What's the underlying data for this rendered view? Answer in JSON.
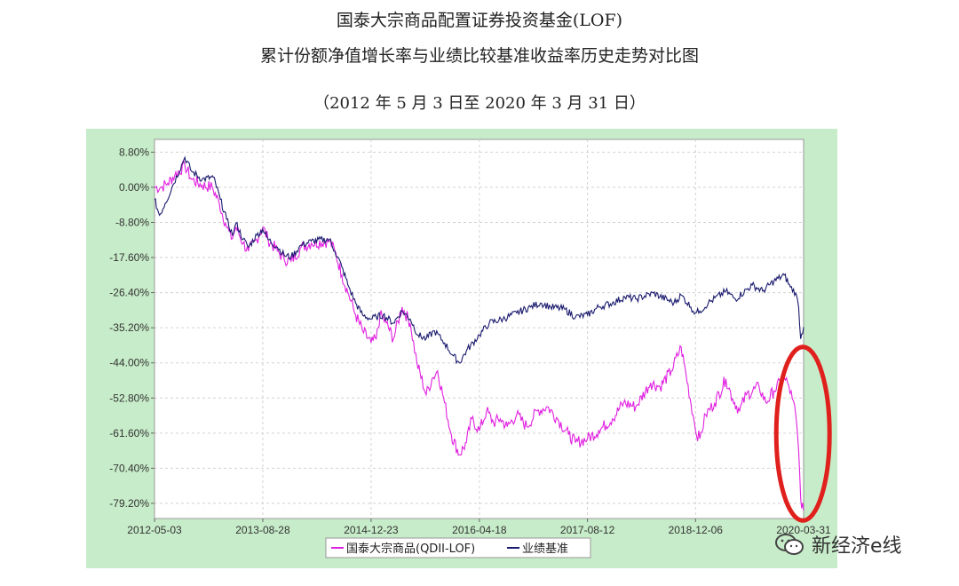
{
  "header": {
    "title_line1": "国泰大宗商品配置证券投资基金(LOF)",
    "title_line2": "累计份额净值增长率与业绩比较基准收益率历史走势对比图",
    "period": "（2012 年 5 月 3 日至 2020 年 3 月 31 日）"
  },
  "watermark": {
    "text": "新经济e线",
    "icon": "wechat-icon"
  },
  "colors": {
    "background": "#c7ecc9",
    "fund": "#e020e0",
    "benchmark": "#1a1a6e",
    "highlight": "#e0201c"
  },
  "chart_data": {
    "type": "line",
    "title": "累计份额净值增长率与业绩比较基准收益率历史走势对比图",
    "xlabel": "",
    "ylabel": "",
    "x_tick_labels": [
      "2012-05-03",
      "2013-08-28",
      "2014-12-23",
      "2016-04-18",
      "2017-08-12",
      "2018-12-06",
      "2020-03-31"
    ],
    "y_tick_labels": [
      "8.80%",
      "0.00%",
      "-8.80%",
      "-17.60%",
      "-26.40%",
      "-35.20%",
      "-44.00%",
      "-52.80%",
      "-61.60%",
      "-70.40%",
      "-79.20%"
    ],
    "ylim": [
      -83,
      12
    ],
    "xlim": [
      "2012-05-03",
      "2020-03-31"
    ],
    "grid": true,
    "legend": "bottom",
    "series": [
      {
        "name": "国泰大宗商品(QDII-LOF)",
        "points": [
          [
            "2012-05-03",
            0.0
          ],
          [
            "2012-06-01",
            0.0
          ],
          [
            "2012-07-01",
            1.0
          ],
          [
            "2012-08-01",
            3.0
          ],
          [
            "2012-09-15",
            5.5
          ],
          [
            "2012-10-15",
            2.0
          ],
          [
            "2012-12-01",
            0.5
          ],
          [
            "2013-01-15",
            0.0
          ],
          [
            "2013-02-15",
            -4.0
          ],
          [
            "2013-03-15",
            -9.0
          ],
          [
            "2013-04-10",
            -13.0
          ],
          [
            "2013-05-01",
            -10.0
          ],
          [
            "2013-06-01",
            -14.0
          ],
          [
            "2013-06-25",
            -16.0
          ],
          [
            "2013-08-01",
            -13.0
          ],
          [
            "2013-08-28",
            -10.0
          ],
          [
            "2013-09-20",
            -13.0
          ],
          [
            "2013-11-01",
            -16.0
          ],
          [
            "2013-12-01",
            -18.0
          ],
          [
            "2014-01-01",
            -18.5
          ],
          [
            "2014-02-15",
            -15.0
          ],
          [
            "2014-04-01",
            -14.0
          ],
          [
            "2014-06-20",
            -13.5
          ],
          [
            "2014-07-15",
            -16.0
          ],
          [
            "2014-08-15",
            -22.0
          ],
          [
            "2014-09-15",
            -27.0
          ],
          [
            "2014-10-15",
            -32.0
          ],
          [
            "2014-11-15",
            -36.0
          ],
          [
            "2014-12-23",
            -39.0
          ],
          [
            "2015-01-15",
            -38.0
          ],
          [
            "2015-02-01",
            -32.0
          ],
          [
            "2015-03-01",
            -34.0
          ],
          [
            "2015-04-01",
            -38.0
          ],
          [
            "2015-05-10",
            -30.0
          ],
          [
            "2015-06-15",
            -34.0
          ],
          [
            "2015-07-15",
            -44.0
          ],
          [
            "2015-08-25",
            -52.0
          ],
          [
            "2015-09-20",
            -48.0
          ],
          [
            "2015-10-15",
            -46.0
          ],
          [
            "2015-11-15",
            -54.0
          ],
          [
            "2015-12-15",
            -62.0
          ],
          [
            "2016-01-20",
            -67.0
          ],
          [
            "2016-02-20",
            -64.0
          ],
          [
            "2016-03-15",
            -58.0
          ],
          [
            "2016-04-18",
            -61.0
          ],
          [
            "2016-05-20",
            -56.0
          ],
          [
            "2016-06-20",
            -59.0
          ],
          [
            "2016-07-20",
            -58.0
          ],
          [
            "2016-08-20",
            -60.0
          ],
          [
            "2016-10-01",
            -57.0
          ],
          [
            "2016-11-15",
            -60.0
          ],
          [
            "2017-01-01",
            -56.0
          ],
          [
            "2017-02-15",
            -55.0
          ],
          [
            "2017-04-01",
            -58.0
          ],
          [
            "2017-05-20",
            -62.0
          ],
          [
            "2017-06-20",
            -64.0
          ],
          [
            "2017-08-12",
            -63.0
          ],
          [
            "2017-10-01",
            -61.0
          ],
          [
            "2017-12-01",
            -58.0
          ],
          [
            "2018-01-20",
            -54.0
          ],
          [
            "2018-03-15",
            -55.0
          ],
          [
            "2018-05-20",
            -49.0
          ],
          [
            "2018-07-01",
            -50.0
          ],
          [
            "2018-08-20",
            -46.0
          ],
          [
            "2018-10-03",
            -40.0
          ],
          [
            "2018-10-25",
            -47.0
          ],
          [
            "2018-11-25",
            -57.0
          ],
          [
            "2018-12-06",
            -61.0
          ],
          [
            "2018-12-25",
            -63.0
          ],
          [
            "2019-01-20",
            -57.0
          ],
          [
            "2019-03-01",
            -54.0
          ],
          [
            "2019-04-20",
            -48.0
          ],
          [
            "2019-05-20",
            -53.0
          ],
          [
            "2019-06-20",
            -56.0
          ],
          [
            "2019-07-20",
            -52.0
          ],
          [
            "2019-09-15",
            -50.0
          ],
          [
            "2019-10-15",
            -54.0
          ],
          [
            "2019-11-20",
            -51.0
          ],
          [
            "2019-12-30",
            -48.0
          ],
          [
            "2020-01-20",
            -49.0
          ],
          [
            "2020-02-10",
            -53.0
          ],
          [
            "2020-02-25",
            -57.0
          ],
          [
            "2020-03-09",
            -66.0
          ],
          [
            "2020-03-18",
            -78.0
          ],
          [
            "2020-03-31",
            -81.0
          ]
        ]
      },
      {
        "name": "业绩基准",
        "points": [
          [
            "2012-05-03",
            -3.0
          ],
          [
            "2012-05-25",
            -7.0
          ],
          [
            "2012-06-20",
            -4.0
          ],
          [
            "2012-07-20",
            0.0
          ],
          [
            "2012-09-15",
            7.5
          ],
          [
            "2012-10-15",
            4.0
          ],
          [
            "2012-12-01",
            2.0
          ],
          [
            "2013-01-20",
            2.5
          ],
          [
            "2013-02-20",
            -3.0
          ],
          [
            "2013-03-20",
            -8.0
          ],
          [
            "2013-04-15",
            -12.0
          ],
          [
            "2013-05-01",
            -9.0
          ],
          [
            "2013-06-01",
            -13.0
          ],
          [
            "2013-06-25",
            -15.0
          ],
          [
            "2013-08-01",
            -12.0
          ],
          [
            "2013-08-28",
            -10.5
          ],
          [
            "2013-09-20",
            -13.0
          ],
          [
            "2013-11-01",
            -15.0
          ],
          [
            "2013-12-01",
            -17.0
          ],
          [
            "2014-01-01",
            -17.5
          ],
          [
            "2014-02-15",
            -14.5
          ],
          [
            "2014-04-01",
            -13.5
          ],
          [
            "2014-06-20",
            -13.0
          ],
          [
            "2014-07-15",
            -16.0
          ],
          [
            "2014-08-15",
            -20.0
          ],
          [
            "2014-09-15",
            -25.0
          ],
          [
            "2014-10-15",
            -29.0
          ],
          [
            "2014-11-15",
            -32.0
          ],
          [
            "2014-12-23",
            -33.0
          ],
          [
            "2015-01-15",
            -32.5
          ],
          [
            "2015-02-15",
            -32.0
          ],
          [
            "2015-04-01",
            -34.0
          ],
          [
            "2015-05-10",
            -31.0
          ],
          [
            "2015-06-15",
            -33.0
          ],
          [
            "2015-07-20",
            -37.0
          ],
          [
            "2015-08-25",
            -38.0
          ],
          [
            "2015-10-01",
            -36.0
          ],
          [
            "2015-11-15",
            -39.0
          ],
          [
            "2015-12-20",
            -42.0
          ],
          [
            "2016-01-20",
            -44.0
          ],
          [
            "2016-02-20",
            -41.0
          ],
          [
            "2016-04-18",
            -37.0
          ],
          [
            "2016-06-01",
            -34.0
          ],
          [
            "2016-08-01",
            -33.0
          ],
          [
            "2016-10-01",
            -31.5
          ],
          [
            "2016-12-01",
            -30.0
          ],
          [
            "2017-01-15",
            -29.0
          ],
          [
            "2017-03-01",
            -30.0
          ],
          [
            "2017-05-01",
            -30.5
          ],
          [
            "2017-06-20",
            -32.5
          ],
          [
            "2017-08-12",
            -32.0
          ],
          [
            "2017-10-01",
            -30.0
          ],
          [
            "2017-12-01",
            -29.0
          ],
          [
            "2018-01-25",
            -27.5
          ],
          [
            "2018-03-15",
            -28.0
          ],
          [
            "2018-06-01",
            -26.5
          ],
          [
            "2018-09-01",
            -29.0
          ],
          [
            "2018-10-03",
            -27.0
          ],
          [
            "2018-11-15",
            -30.0
          ],
          [
            "2018-12-06",
            -31.5
          ],
          [
            "2018-12-25",
            -31.0
          ],
          [
            "2019-02-01",
            -29.0
          ],
          [
            "2019-04-20",
            -26.0
          ],
          [
            "2019-06-01",
            -28.0
          ],
          [
            "2019-08-15",
            -24.5
          ],
          [
            "2019-10-01",
            -26.0
          ],
          [
            "2019-11-20",
            -23.5
          ],
          [
            "2020-01-05",
            -22.0
          ],
          [
            "2020-02-01",
            -25.0
          ],
          [
            "2020-02-25",
            -26.5
          ],
          [
            "2020-03-09",
            -30.0
          ],
          [
            "2020-03-18",
            -38.0
          ],
          [
            "2020-03-31",
            -35.0
          ]
        ]
      }
    ],
    "annotations": [
      {
        "type": "ellipse",
        "color": "#e0201c",
        "around": [
          "2020-03-09",
          "2020-03-31"
        ]
      }
    ]
  }
}
